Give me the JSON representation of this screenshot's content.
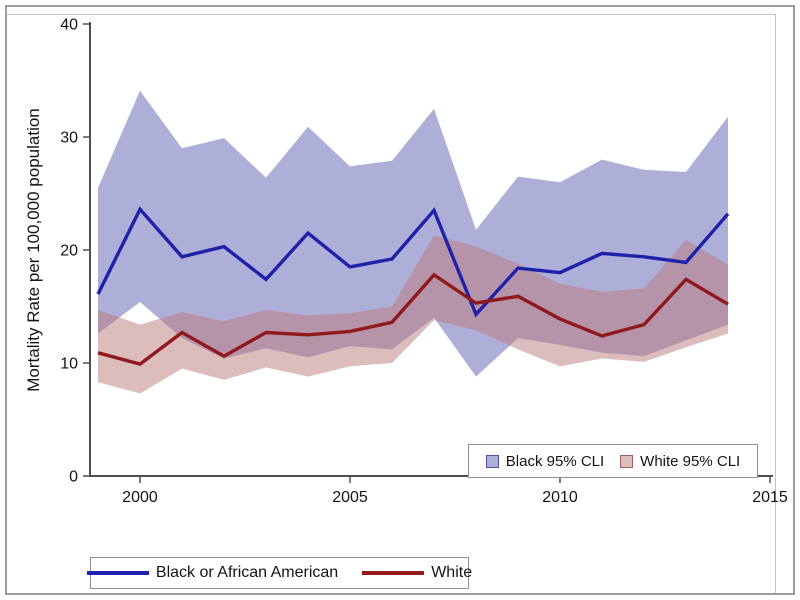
{
  "chart_data": {
    "type": "line",
    "title": "",
    "xlabel": "",
    "ylabel": "Mortality Rate per 100,000 population",
    "x": [
      1999,
      2000,
      2001,
      2002,
      2003,
      2004,
      2005,
      2006,
      2007,
      2008,
      2009,
      2010,
      2011,
      2012,
      2013,
      2014
    ],
    "series": [
      {
        "name": "Black or African American",
        "color": "#1e22aa",
        "values": [
          16.1,
          23.6,
          19.4,
          20.3,
          17.4,
          21.5,
          18.5,
          19.2,
          23.5,
          14.3,
          18.4,
          18.0,
          19.7,
          19.4,
          18.9,
          23.2
        ]
      },
      {
        "name": "White",
        "color": "#901a1b",
        "values": [
          10.9,
          9.9,
          12.7,
          10.6,
          12.7,
          12.5,
          12.8,
          13.6,
          17.8,
          15.3,
          15.9,
          13.9,
          12.4,
          13.4,
          17.4,
          15.2
        ]
      }
    ],
    "bands": [
      {
        "name": "Black 95% CLI",
        "fill": "#5d5fb1",
        "opacity": 0.5,
        "swatch": "#aeafd8",
        "swatch_border": "#5053a5",
        "upper": [
          25.5,
          34.1,
          29.0,
          29.9,
          26.4,
          30.9,
          27.4,
          27.9,
          32.5,
          21.8,
          26.5,
          26.0,
          28.0,
          27.1,
          26.9,
          31.8
        ],
        "lower": [
          12.6,
          15.4,
          12.2,
          10.4,
          11.3,
          10.5,
          11.5,
          11.2,
          14.0,
          8.8,
          12.2,
          11.6,
          10.9,
          10.6,
          12.0,
          13.4
        ]
      },
      {
        "name": "White 95% CLI",
        "fill": "#bb7979",
        "opacity": 0.5,
        "swatch": "#ddbcbc",
        "swatch_border": "#9d5f62",
        "upper": [
          14.7,
          13.4,
          14.5,
          13.7,
          14.7,
          14.2,
          14.4,
          15.0,
          21.3,
          20.3,
          18.8,
          17.0,
          16.3,
          16.6,
          20.9,
          18.7
        ],
        "lower": [
          8.3,
          7.3,
          9.5,
          8.5,
          9.6,
          8.8,
          9.7,
          10.0,
          13.8,
          12.9,
          11.2,
          9.7,
          10.4,
          10.1,
          11.4,
          12.6
        ]
      }
    ],
    "xlim": [
      1998.81,
      2015.0
    ],
    "ylim": [
      0,
      40
    ],
    "x_ticks": [
      2000,
      2005,
      2010,
      2015
    ],
    "y_ticks": [
      0,
      10,
      20,
      30,
      40
    ],
    "grid": false,
    "legend_ci_position": "inside bottom-right",
    "legend_series_position": "below plot"
  },
  "style": {
    "axis_color": "#4f4f4f",
    "text_color": "#141414",
    "line_width": 3.4
  }
}
